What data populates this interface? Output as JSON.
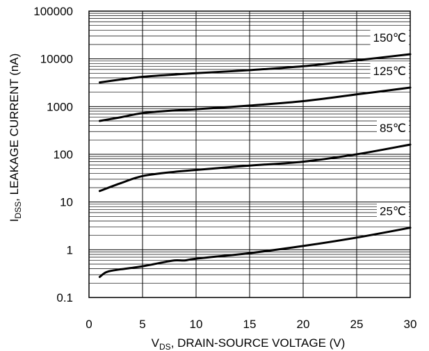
{
  "chart_data": {
    "type": "line",
    "title": "",
    "xlabel": {
      "main": "V",
      "sub": "DS",
      "rest": ", DRAIN-SOURCE VOLTAGE (V)"
    },
    "ylabel": {
      "main": "I",
      "sub": "DSS",
      "rest": ", LEAKAGE CURRENT (nA)"
    },
    "xlim": [
      0,
      30
    ],
    "ylim": [
      0.1,
      100000
    ],
    "yscale": "log",
    "grid": true,
    "x_ticks": [
      0,
      5,
      10,
      15,
      20,
      25,
      30
    ],
    "x_tick_labels": [
      "0",
      "5",
      "10",
      "15",
      "20",
      "25",
      "30"
    ],
    "y_ticks": [
      0.1,
      1,
      10,
      100,
      1000,
      10000,
      100000
    ],
    "y_tick_labels": [
      "0.1",
      "1",
      "10",
      "100",
      "1000",
      "10000",
      "100000"
    ],
    "series": [
      {
        "name": "150℃",
        "x": [
          1,
          3,
          5,
          8,
          10,
          15,
          20,
          25,
          30
        ],
        "values": [
          3200,
          3700,
          4200,
          4700,
          5000,
          5800,
          7000,
          9300,
          12500
        ]
      },
      {
        "name": "125℃",
        "x": [
          1,
          3,
          5,
          8,
          10,
          15,
          20,
          25,
          30
        ],
        "values": [
          500,
          600,
          730,
          830,
          880,
          1050,
          1300,
          1800,
          2500
        ]
      },
      {
        "name": "85℃",
        "x": [
          1,
          3,
          5,
          8,
          10,
          15,
          20,
          25,
          30
        ],
        "values": [
          17,
          25,
          35,
          43,
          47,
          58,
          70,
          100,
          160
        ]
      },
      {
        "name": "25℃",
        "x": [
          1,
          1.5,
          2,
          3,
          5,
          7,
          8,
          9,
          10,
          15,
          20,
          25,
          30
        ],
        "values": [
          0.27,
          0.33,
          0.36,
          0.39,
          0.45,
          0.55,
          0.6,
          0.6,
          0.65,
          0.85,
          1.2,
          1.8,
          2.9
        ]
      }
    ]
  }
}
